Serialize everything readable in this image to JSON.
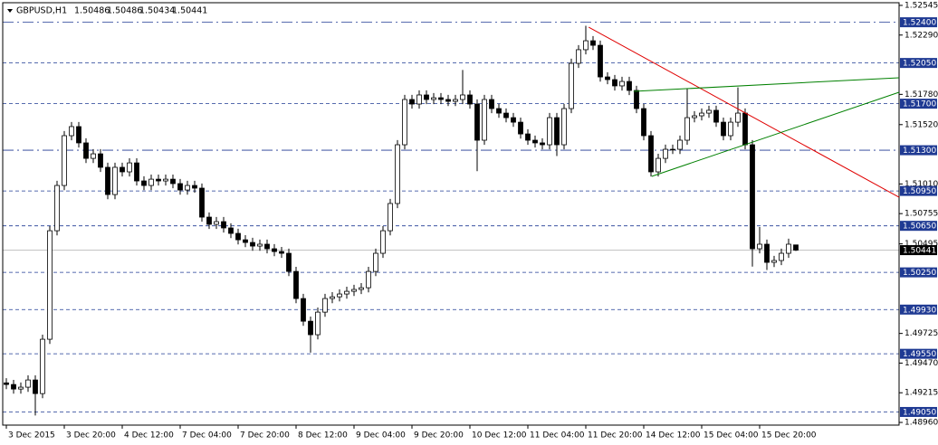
{
  "chart_data": {
    "type": "candlestick",
    "symbol": "GBPUSD,H1",
    "header_values": [
      1.50486,
      1.50486,
      1.50434,
      1.50441
    ],
    "xlim": [
      -0.5,
      123.25
    ],
    "ylim": [
      1.48937,
      1.52568
    ],
    "xticks": [
      {
        "value": 0,
        "label": "3 Dec 2015"
      },
      {
        "value": 8,
        "label": "3 Dec 20:00"
      },
      {
        "value": 16,
        "label": "4 Dec 12:00"
      },
      {
        "value": 24,
        "label": "7 Dec 04:00"
      },
      {
        "value": 32,
        "label": "7 Dec 20:00"
      },
      {
        "value": 40,
        "label": "8 Dec 12:00"
      },
      {
        "value": 48,
        "label": "9 Dec 04:00"
      },
      {
        "value": 56,
        "label": "9 Dec 20:00"
      },
      {
        "value": 64,
        "label": "10 Dec 12:00"
      },
      {
        "value": 72,
        "label": "11 Dec 04:00"
      },
      {
        "value": 80,
        "label": "11 Dec 20:00"
      },
      {
        "value": 88,
        "label": "14 Dec 12:00"
      },
      {
        "value": 96,
        "label": "15 Dec 04:00"
      },
      {
        "value": 104,
        "label": "15 Dec 20:00"
      }
    ],
    "yticks": [
      {
        "value": 1.52545,
        "label": "1.52545"
      },
      {
        "value": 1.5229,
        "label": "1.52290"
      },
      {
        "value": 1.5178,
        "label": "1.51780"
      },
      {
        "value": 1.5152,
        "label": "1.51520"
      },
      {
        "value": 1.5101,
        "label": "1.51010"
      },
      {
        "value": 1.50755,
        "label": "1.50755"
      },
      {
        "value": 1.50495,
        "label": "1.50495"
      },
      {
        "value": 1.49725,
        "label": "1.49725"
      },
      {
        "value": 1.4947,
        "label": "1.49470"
      },
      {
        "value": 1.49215,
        "label": "1.49215"
      },
      {
        "value": 1.4896,
        "label": "1.48960"
      }
    ],
    "levels": [
      {
        "value": 1.524,
        "label": "1.52400",
        "dash": "dashdot"
      },
      {
        "value": 1.5205,
        "label": "1.52050",
        "dash": "dash"
      },
      {
        "value": 1.517,
        "label": "1.51700",
        "dash": "dash"
      },
      {
        "value": 1.513,
        "label": "1.51300",
        "dash": "dashdot"
      },
      {
        "value": 1.5095,
        "label": "1.50950",
        "dash": "dash"
      },
      {
        "value": 1.5065,
        "label": "1.50650",
        "dash": "dash"
      },
      {
        "value": 1.5025,
        "label": "1.50250",
        "dash": "dash"
      },
      {
        "value": 1.4993,
        "label": "1.49930",
        "dash": "dash"
      },
      {
        "value": 1.4955,
        "label": "1.49550",
        "dash": "dash"
      },
      {
        "value": 1.4905,
        "label": "1.49050",
        "dash": "dash"
      }
    ],
    "level_color": "#1f3a93",
    "trendlines": [
      {
        "color": "#e00000",
        "points": [
          [
            80.4,
            1.52358
          ],
          [
            123.25,
            1.50896
          ]
        ]
      },
      {
        "color": "#008000",
        "points": [
          [
            86.6,
            1.51806
          ],
          [
            123.25,
            1.51923
          ]
        ]
      },
      {
        "color": "#008000",
        "points": [
          [
            89.1,
            1.51075
          ],
          [
            123.25,
            1.51798
          ]
        ]
      }
    ],
    "candles": [
      [
        1.493,
        1.4934,
        1.49246,
        1.49286
      ],
      [
        1.49286,
        1.49326,
        1.49207,
        1.49247
      ],
      [
        1.49247,
        1.49303,
        1.49207,
        1.49263
      ],
      [
        1.49263,
        1.49365,
        1.49223,
        1.49325
      ],
      [
        1.49325,
        1.49365,
        1.4902,
        1.49208
      ],
      [
        1.49208,
        1.49715,
        1.49168,
        1.49675
      ],
      [
        1.49675,
        1.50648,
        1.49635,
        1.50608
      ],
      [
        1.50608,
        1.51037,
        1.50568,
        1.50997
      ],
      [
        1.50997,
        1.51465,
        1.50957,
        1.51425
      ],
      [
        1.51425,
        1.51543,
        1.51385,
        1.51503
      ],
      [
        1.51503,
        1.51543,
        1.51323,
        1.51363
      ],
      [
        1.51363,
        1.51403,
        1.5119,
        1.5123
      ],
      [
        1.5123,
        1.51309,
        1.5119,
        1.51269
      ],
      [
        1.51269,
        1.51309,
        1.51113,
        1.51153
      ],
      [
        1.51153,
        1.51193,
        1.50879,
        1.50919
      ],
      [
        1.50919,
        1.51193,
        1.50879,
        1.51153
      ],
      [
        1.51153,
        1.51193,
        1.51074,
        1.51114
      ],
      [
        1.51114,
        1.51231,
        1.51074,
        1.51191
      ],
      [
        1.51191,
        1.51231,
        1.50996,
        1.51036
      ],
      [
        1.51036,
        1.51076,
        1.50957,
        1.50997
      ],
      [
        1.50997,
        1.51091,
        1.50957,
        1.51051
      ],
      [
        1.51051,
        1.51091,
        1.50996,
        1.51036
      ],
      [
        1.51036,
        1.51091,
        1.50996,
        1.51051
      ],
      [
        1.51051,
        1.51091,
        1.50973,
        1.51013
      ],
      [
        1.51013,
        1.51053,
        1.50918,
        1.50958
      ],
      [
        1.50958,
        1.51037,
        1.50918,
        1.50997
      ],
      [
        1.50997,
        1.51037,
        1.50934,
        1.50974
      ],
      [
        1.50974,
        1.51014,
        1.50685,
        1.50725
      ],
      [
        1.50725,
        1.50765,
        1.50623,
        1.50663
      ],
      [
        1.50663,
        1.50726,
        1.50623,
        1.50686
      ],
      [
        1.50686,
        1.50726,
        1.50592,
        1.50632
      ],
      [
        1.50632,
        1.50672,
        1.50545,
        1.50585
      ],
      [
        1.50585,
        1.50625,
        1.5049,
        1.5053
      ],
      [
        1.5053,
        1.5057,
        1.50467,
        1.50507
      ],
      [
        1.50507,
        1.50547,
        1.50436,
        1.50476
      ],
      [
        1.50476,
        1.50532,
        1.50436,
        1.50492
      ],
      [
        1.50492,
        1.50532,
        1.50413,
        1.50453
      ],
      [
        1.50453,
        1.50493,
        1.50389,
        1.50429
      ],
      [
        1.50429,
        1.50469,
        1.50374,
        1.50414
      ],
      [
        1.50414,
        1.50454,
        1.50218,
        1.50258
      ],
      [
        1.50258,
        1.50298,
        1.49985,
        1.50025
      ],
      [
        1.50025,
        1.50065,
        1.4979,
        1.4983
      ],
      [
        1.4983,
        1.4987,
        1.4956,
        1.49714
      ],
      [
        1.49714,
        1.49948,
        1.49674,
        1.49908
      ],
      [
        1.49908,
        1.50065,
        1.49868,
        1.50025
      ],
      [
        1.50025,
        1.5008,
        1.49985,
        1.5004
      ],
      [
        1.5004,
        1.50104,
        1.5,
        1.50064
      ],
      [
        1.50064,
        1.50127,
        1.50024,
        1.50087
      ],
      [
        1.50087,
        1.50143,
        1.50047,
        1.50103
      ],
      [
        1.50103,
        1.50158,
        1.50063,
        1.50118
      ],
      [
        1.50118,
        1.50298,
        1.50078,
        1.50258
      ],
      [
        1.50258,
        1.50454,
        1.50218,
        1.50414
      ],
      [
        1.50414,
        1.50648,
        1.50374,
        1.50608
      ],
      [
        1.50608,
        1.50882,
        1.50568,
        1.50842
      ],
      [
        1.50842,
        1.51387,
        1.50802,
        1.51347
      ],
      [
        1.51347,
        1.51776,
        1.51307,
        1.51736
      ],
      [
        1.51736,
        1.51776,
        1.51657,
        1.51697
      ],
      [
        1.51697,
        1.51815,
        1.51657,
        1.51775
      ],
      [
        1.51775,
        1.51815,
        1.51696,
        1.51736
      ],
      [
        1.51736,
        1.51791,
        1.51696,
        1.51751
      ],
      [
        1.51751,
        1.51791,
        1.51696,
        1.51736
      ],
      [
        1.51736,
        1.51776,
        1.5168,
        1.5172
      ],
      [
        1.5172,
        1.51776,
        1.5168,
        1.51736
      ],
      [
        1.51736,
        1.5199,
        1.51696,
        1.51775
      ],
      [
        1.51775,
        1.51815,
        1.51657,
        1.51697
      ],
      [
        1.51697,
        1.51737,
        1.5112,
        1.51386
      ],
      [
        1.51386,
        1.51776,
        1.51346,
        1.51736
      ],
      [
        1.51736,
        1.51776,
        1.51618,
        1.51658
      ],
      [
        1.51658,
        1.51698,
        1.51579,
        1.51619
      ],
      [
        1.51619,
        1.51659,
        1.5154,
        1.5158
      ],
      [
        1.5158,
        1.5162,
        1.51501,
        1.51541
      ],
      [
        1.51541,
        1.51581,
        1.514,
        1.5144
      ],
      [
        1.5144,
        1.5148,
        1.51346,
        1.51386
      ],
      [
        1.51386,
        1.51426,
        1.51323,
        1.51363
      ],
      [
        1.51363,
        1.51403,
        1.51307,
        1.51347
      ],
      [
        1.51347,
        1.5162,
        1.51307,
        1.5158
      ],
      [
        1.5158,
        1.5162,
        1.5125,
        1.51347
      ],
      [
        1.51347,
        1.51698,
        1.51307,
        1.51658
      ],
      [
        1.51658,
        1.52087,
        1.51618,
        1.52047
      ],
      [
        1.52047,
        1.52204,
        1.52007,
        1.52164
      ],
      [
        1.52164,
        1.5237,
        1.52124,
        1.52241
      ],
      [
        1.52241,
        1.52281,
        1.52162,
        1.52202
      ],
      [
        1.52202,
        1.52242,
        1.5189,
        1.5193
      ],
      [
        1.5193,
        1.5197,
        1.51867,
        1.51907
      ],
      [
        1.51907,
        1.51947,
        1.51813,
        1.51853
      ],
      [
        1.51853,
        1.51931,
        1.51813,
        1.51891
      ],
      [
        1.51891,
        1.51931,
        1.51774,
        1.51814
      ],
      [
        1.51814,
        1.51854,
        1.51618,
        1.51658
      ],
      [
        1.51658,
        1.51698,
        1.51385,
        1.51425
      ],
      [
        1.51425,
        1.51465,
        1.51074,
        1.51114
      ],
      [
        1.51114,
        1.5127,
        1.51074,
        1.5123
      ],
      [
        1.5123,
        1.51348,
        1.5119,
        1.51308
      ],
      [
        1.51308,
        1.51348,
        1.51268,
        1.51308
      ],
      [
        1.51308,
        1.51426,
        1.51268,
        1.51386
      ],
      [
        1.51386,
        1.5183,
        1.51346,
        1.5158
      ],
      [
        1.5158,
        1.51636,
        1.5154,
        1.51596
      ],
      [
        1.51596,
        1.51659,
        1.51556,
        1.51619
      ],
      [
        1.51619,
        1.51683,
        1.51579,
        1.51643
      ],
      [
        1.51643,
        1.51683,
        1.51501,
        1.51541
      ],
      [
        1.51541,
        1.51581,
        1.51385,
        1.51425
      ],
      [
        1.51425,
        1.51581,
        1.51385,
        1.51541
      ],
      [
        1.51541,
        1.5184,
        1.51501,
        1.51619
      ],
      [
        1.51619,
        1.51659,
        1.51307,
        1.51347
      ],
      [
        1.51347,
        1.51387,
        1.503,
        1.50453
      ],
      [
        1.50453,
        1.5064,
        1.50413,
        1.50492
      ],
      [
        1.50492,
        1.50532,
        1.5027,
        1.50336
      ],
      [
        1.50336,
        1.50392,
        1.50296,
        1.50352
      ],
      [
        1.50352,
        1.50454,
        1.50312,
        1.50414
      ],
      [
        1.50414,
        1.5054,
        1.50374,
        1.50492
      ],
      [
        1.50486,
        1.50486,
        1.50434,
        1.50441
      ]
    ]
  }
}
